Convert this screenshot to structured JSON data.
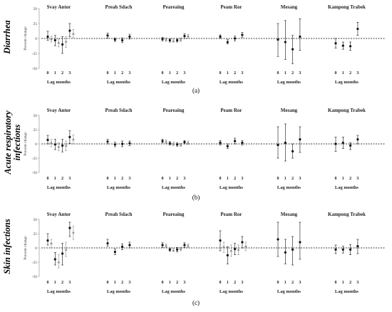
{
  "figure": {
    "districts": [
      "Svay Antor",
      "Preah Sdach",
      "Peareaing",
      "Peam Ror",
      "Mesang",
      "Kampong Trabek"
    ],
    "lag_ticks": [
      "0",
      "1",
      "2",
      "3"
    ],
    "xlabel": "Lag months",
    "ylabel": "Percent change",
    "y_ticks": [
      "-50",
      "-25",
      "0",
      "25",
      "50"
    ],
    "colors": {
      "black_series": "#111111",
      "gray_series": "#8c8c8c",
      "axis": "#999999",
      "zero_line": "#000000"
    }
  },
  "chart_data": [
    {
      "type": "scatter",
      "row_label": "Diarrhea",
      "caption": "(a)",
      "ylim": [
        -50,
        50
      ],
      "grid": false,
      "panels": [
        {
          "district": "Svay Antor",
          "series": [
            {
              "estimate": [
                3,
                -3,
                -10,
                13
              ],
              "lower": [
                -3,
                -12,
                -25,
                3
              ],
              "upper": [
                12,
                5,
                3,
                25
              ]
            },
            {
              "estimate": [
                -1,
                -7,
                -5,
                8
              ],
              "lower": [
                -6,
                -14,
                -15,
                2
              ],
              "upper": [
                4,
                -1,
                3,
                15
              ]
            }
          ]
        },
        {
          "district": "Preah Sdach",
          "series": [
            {
              "estimate": [
                5,
                -2,
                -3,
                3
              ],
              "lower": [
                1,
                -5,
                -7,
                -1
              ],
              "upper": [
                9,
                1,
                1,
                7
              ]
            }
          ]
        },
        {
          "district": "Peareaing",
          "series": [
            {
              "estimate": [
                -1,
                -3,
                -3,
                4
              ],
              "lower": [
                -4,
                -6,
                -6,
                0
              ],
              "upper": [
                2,
                0,
                0,
                8
              ]
            },
            {
              "estimate": [
                -2,
                -4,
                -2,
                4
              ],
              "lower": [
                -5,
                -6,
                -5,
                1
              ],
              "upper": [
                1,
                -1,
                1,
                7
              ]
            }
          ]
        },
        {
          "district": "Peam Ror",
          "series": [
            {
              "estimate": [
                3,
                -6,
                0,
                6
              ],
              "lower": [
                0,
                -9,
                -4,
                2
              ],
              "upper": [
                6,
                -2,
                4,
                10
              ]
            }
          ]
        },
        {
          "district": "Mesang",
          "series": [
            {
              "estimate": [
                -2,
                -6,
                -18,
                3
              ],
              "lower": [
                -30,
                -35,
                -42,
                -20
              ],
              "upper": [
                25,
                30,
                5,
                33
              ]
            }
          ]
        },
        {
          "district": "Kampong Trabek",
          "series": [
            {
              "estimate": [
                -8,
                -12,
                -13,
                16
              ],
              "lower": [
                -16,
                -18,
                -20,
                5
              ],
              "upper": [
                0,
                -6,
                -6,
                27
              ]
            }
          ]
        }
      ]
    },
    {
      "type": "scatter",
      "row_label": "Acute respiratory infections",
      "caption": "(b)",
      "ylim": [
        -50,
        50
      ],
      "grid": false,
      "panels": [
        {
          "district": "Svay Antor",
          "series": [
            {
              "estimate": [
                7,
                -1,
                -3,
                12
              ],
              "lower": [
                0,
                -10,
                -14,
                1
              ],
              "upper": [
                15,
                8,
                8,
                23
              ]
            },
            {
              "estimate": [
                2,
                -5,
                -3,
                8
              ],
              "lower": [
                -5,
                -12,
                -12,
                0
              ],
              "upper": [
                8,
                2,
                5,
                16
              ]
            }
          ]
        },
        {
          "district": "Preah Sdach",
          "series": [
            {
              "estimate": [
                4,
                -1,
                0,
                1
              ],
              "lower": [
                0,
                -5,
                -5,
                -3
              ],
              "upper": [
                8,
                3,
                5,
                5
              ]
            }
          ]
        },
        {
          "district": "Peareaing",
          "series": [
            {
              "estimate": [
                5,
                1,
                -1,
                3
              ],
              "lower": [
                2,
                -2,
                -4,
                0
              ],
              "upper": [
                8,
                4,
                2,
                6
              ]
            },
            {
              "estimate": [
                4,
                0,
                -2,
                2
              ],
              "lower": [
                1,
                -3,
                -4,
                -1
              ],
              "upper": [
                7,
                3,
                1,
                5
              ]
            }
          ]
        },
        {
          "district": "Peam Ror",
          "series": [
            {
              "estimate": [
                2,
                -4,
                5,
                2
              ],
              "lower": [
                -2,
                -8,
                0,
                -2
              ],
              "upper": [
                6,
                0,
                10,
                6
              ]
            }
          ]
        },
        {
          "district": "Mesang",
          "series": [
            {
              "estimate": [
                -2,
                2,
                -13,
                8
              ],
              "lower": [
                -25,
                -30,
                -25,
                -15
              ],
              "upper": [
                30,
                35,
                0,
                30
              ]
            }
          ]
        },
        {
          "district": "Kampong Trabek",
          "series": [
            {
              "estimate": [
                0,
                2,
                -3,
                8
              ],
              "lower": [
                -13,
                -8,
                -10,
                0
              ],
              "upper": [
                12,
                12,
                2,
                15
              ]
            }
          ]
        }
      ]
    },
    {
      "type": "scatter",
      "row_label": "Skin infections",
      "caption": "(c)",
      "ylim": [
        -50,
        50
      ],
      "grid": false,
      "panels": [
        {
          "district": "Svay Antor",
          "series": [
            {
              "estimate": [
                13,
                -20,
                -10,
                35
              ],
              "lower": [
                5,
                -30,
                -30,
                20
              ],
              "upper": [
                25,
                -8,
                8,
                45
              ]
            },
            {
              "estimate": [
                8,
                -25,
                -3,
                27
              ],
              "lower": [
                0,
                -35,
                -15,
                15
              ],
              "upper": [
                15,
                -12,
                10,
                38
              ]
            }
          ]
        },
        {
          "district": "Preah Sdach",
          "series": [
            {
              "estimate": [
                8,
                -7,
                2,
                5
              ],
              "lower": [
                3,
                -12,
                -3,
                0
              ],
              "upper": [
                15,
                -2,
                7,
                10
              ]
            }
          ]
        },
        {
          "district": "Peareaing",
          "series": [
            {
              "estimate": [
                5,
                -3,
                -3,
                5
              ],
              "lower": [
                1,
                -6,
                -7,
                1
              ],
              "upper": [
                9,
                0,
                1,
                9
              ]
            },
            {
              "estimate": [
                4,
                -4,
                -2,
                4
              ],
              "lower": [
                1,
                -6,
                -5,
                1
              ],
              "upper": [
                7,
                -1,
                1,
                7
              ]
            }
          ]
        },
        {
          "district": "Peam Ror",
          "series": [
            {
              "estimate": [
                13,
                -13,
                -2,
                10
              ],
              "lower": [
                -5,
                -28,
                -12,
                0
              ],
              "upper": [
                30,
                2,
                8,
                20
              ]
            },
            {
              "estimate": [
                2,
                -5,
                -3,
                3
              ],
              "lower": [
                -8,
                -15,
                -12,
                -5
              ],
              "upper": [
                10,
                5,
                5,
                10
              ]
            }
          ]
        },
        {
          "district": "Mesang",
          "series": [
            {
              "estimate": [
                15,
                -8,
                -3,
                10
              ],
              "lower": [
                -15,
                -28,
                -30,
                -20
              ],
              "upper": [
                45,
                15,
                20,
                45
              ]
            }
          ]
        },
        {
          "district": "Kampong Trabek",
          "series": [
            {
              "estimate": [
                -3,
                -3,
                -3,
                3
              ],
              "lower": [
                -10,
                -9,
                -12,
                -10
              ],
              "upper": [
                5,
                3,
                6,
                15
              ]
            }
          ]
        }
      ]
    }
  ]
}
